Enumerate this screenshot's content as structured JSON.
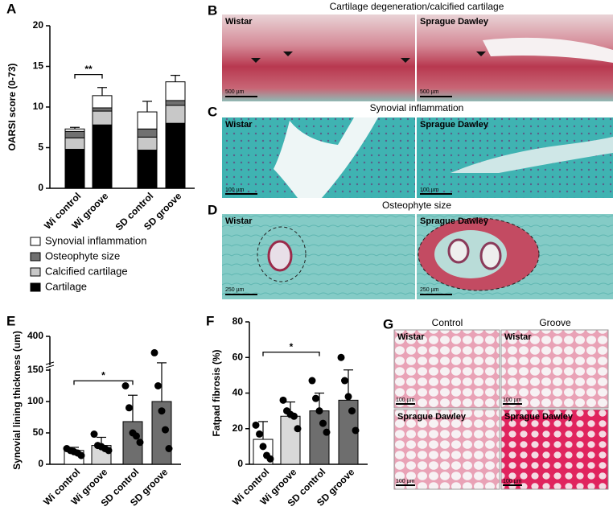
{
  "figure": {
    "panel_letters": [
      "A",
      "B",
      "C",
      "D",
      "E",
      "F",
      "G"
    ],
    "B": {
      "title": "Cartilage degeneration/calcified cartilage",
      "labels": [
        "Wistar",
        "Sprague Dawley"
      ],
      "scale_bars": [
        "500 µm",
        "500 µm"
      ]
    },
    "C": {
      "title": "Synovial inflammation",
      "labels": [
        "Wistar",
        "Sprague Dawley"
      ],
      "scale_bars": [
        "100 µm",
        "100 µm"
      ]
    },
    "D": {
      "title": "Osteophyte size",
      "labels": [
        "Wistar",
        "Sprague Dawley"
      ],
      "scale_bars": [
        "250 µm",
        "250 µm"
      ]
    },
    "G": {
      "columns": [
        "Control",
        "Groove"
      ],
      "labels": [
        "Wistar",
        "Wistar",
        "Sprague Dawley",
        "Sprague Dawley"
      ],
      "scale_bars": [
        "100 µm",
        "100 µm",
        "100 µm",
        "100 µm"
      ]
    }
  },
  "chart_data": [
    {
      "type": "stacked_bar",
      "ylabel": "OARSI score (0-73)",
      "categories": [
        "Wi control",
        "Wi groove",
        null,
        "SD control",
        "SD groove"
      ],
      "ylim": [
        0,
        20
      ],
      "yticks": [
        0,
        5,
        10,
        15,
        20
      ],
      "legend": "bottom",
      "series": [
        {
          "name": "Cartilage",
          "color": "#000000",
          "values": [
            4.8,
            7.8,
            null,
            4.7,
            8.0
          ]
        },
        {
          "name": "Calcified cartilage",
          "color": "#c8c8c8",
          "values": [
            1.4,
            1.7,
            null,
            1.6,
            2.2
          ]
        },
        {
          "name": "Osteophyte size",
          "color": "#707070",
          "values": [
            0.8,
            0.4,
            null,
            1.0,
            0.6
          ]
        },
        {
          "name": "Synovial inflammation",
          "color": "#ffffff",
          "values": [
            0.3,
            1.5,
            null,
            2.1,
            2.3
          ],
          "errors": [
            0.2,
            1.0,
            null,
            1.3,
            0.8
          ]
        }
      ],
      "significance": [
        {
          "between": [
            "Wi control",
            "Wi groove"
          ],
          "y": 14,
          "label": "**"
        }
      ]
    },
    {
      "type": "bar",
      "ylabel": "Synovial lining thickness (um)",
      "categories": [
        "Wi control",
        "Wi groove",
        "SD control",
        "SD groove"
      ],
      "values": [
        22,
        30,
        68,
        100
      ],
      "errors": [
        5,
        13,
        42,
        58
      ],
      "colors": [
        "#ffffff",
        "#d9d9d9",
        "#6e6e6e",
        "#6e6e6e"
      ],
      "points": [
        [
          25,
          22,
          20,
          18,
          14
        ],
        [
          48,
          30,
          28,
          25,
          22
        ],
        [
          125,
          90,
          50,
          45,
          35
        ],
        [
          250,
          125,
          85,
          55,
          25
        ]
      ],
      "ylim": [
        0,
        400
      ],
      "yticks": [
        0,
        50,
        100,
        150,
        400
      ],
      "axis_break": 150,
      "significance": [
        {
          "between": [
            "Wi control",
            "SD control"
          ],
          "y": 133,
          "label": "*"
        }
      ]
    },
    {
      "type": "bar",
      "ylabel": "Fatpad fibrosis (%)",
      "categories": [
        "Wi control",
        "Wi groove",
        "SD control",
        "SD groove"
      ],
      "values": [
        14,
        27,
        30,
        36
      ],
      "errors": [
        10,
        8,
        10,
        17
      ],
      "colors": [
        "#ffffff",
        "#d9d9d9",
        "#6e6e6e",
        "#6e6e6e"
      ],
      "points": [
        [
          22,
          17,
          10,
          5,
          3
        ],
        [
          36,
          30,
          28,
          27,
          20
        ],
        [
          47,
          37,
          30,
          23,
          18
        ],
        [
          60,
          47,
          38,
          30,
          19
        ]
      ],
      "ylim": [
        0,
        80
      ],
      "yticks": [
        0,
        20,
        40,
        60,
        80
      ],
      "significance": [
        {
          "between": [
            "Wi control",
            "SD control"
          ],
          "y": 63,
          "label": "*"
        }
      ]
    }
  ]
}
